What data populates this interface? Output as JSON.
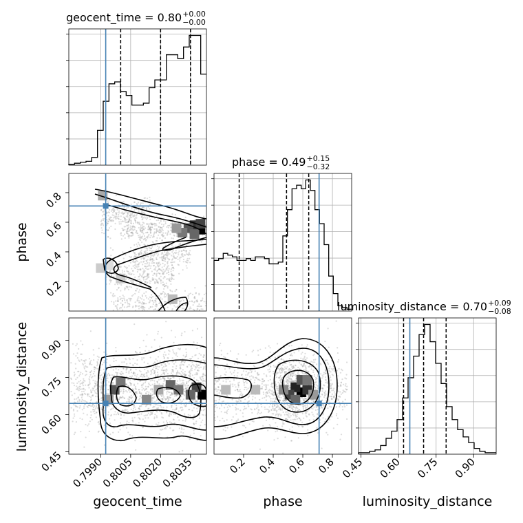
{
  "chart_data": {
    "type": "corner",
    "parameters": [
      "geocent_time",
      "phase",
      "luminosity_distance"
    ],
    "truth_color": "#4682b4",
    "titles": [
      {
        "name": "geocent_time",
        "median": "0.80",
        "plus": "+0.00",
        "minus": "−0.00"
      },
      {
        "name": "phase",
        "median": "0.49",
        "plus": "+0.15",
        "minus": "−0.32"
      },
      {
        "name": "luminosity_distance",
        "median": "0.70",
        "plus": "+0.09",
        "minus": "−0.08"
      }
    ],
    "axis_labels": {
      "x": [
        "geocent_time",
        "phase",
        "luminosity_distance"
      ],
      "y": [
        "phase",
        "luminosity_distance"
      ]
    },
    "truths": {
      "geocent_time": 0.79925,
      "phase": 0.71,
      "luminosity_distance": 0.645
    },
    "ranges": {
      "geocent_time": [
        0.7974,
        0.8043
      ],
      "phase": [
        0.0,
        0.93
      ],
      "luminosity_distance": [
        0.44,
        0.99
      ]
    },
    "ticks": {
      "geocent_time": {
        "values": [
          0.799,
          0.8005,
          0.802,
          0.8035
        ],
        "labels": [
          "0.7990",
          "0.8005",
          "0.8020",
          "0.8035"
        ]
      },
      "phase": {
        "values": [
          0.2,
          0.4,
          0.6,
          0.8
        ],
        "labels": [
          "0.2",
          "0.4",
          "0.6",
          "0.8"
        ]
      },
      "luminosity_distance": {
        "values": [
          0.45,
          0.6,
          0.75,
          0.9
        ],
        "labels": [
          "0.45",
          "0.60",
          "0.75",
          "0.90"
        ]
      }
    },
    "quantiles": {
      "geocent_time": [
        0.8,
        0.802,
        0.8035
      ],
      "phase": [
        0.17,
        0.49,
        0.64
      ],
      "luminosity_distance": [
        0.62,
        0.7,
        0.79
      ]
    },
    "histograms": {
      "geocent_time": {
        "edges_range": [
          0.7974,
          0.8043
        ],
        "counts": [
          0.5,
          1,
          1.5,
          2,
          4,
          18,
          33,
          42,
          43,
          38,
          36,
          31,
          31,
          32,
          40,
          44,
          44,
          57,
          57,
          55,
          61,
          67,
          67,
          47
        ]
      },
      "phase": {
        "edges_range": [
          0.0,
          0.93
        ],
        "counts": [
          29,
          30,
          33,
          32,
          31,
          29,
          29,
          30,
          29,
          31,
          31,
          30,
          27,
          27,
          28,
          43,
          58,
          70,
          72,
          70,
          75,
          69,
          58,
          50,
          38,
          20,
          10,
          3,
          2,
          1
        ]
      },
      "luminosity_distance": {
        "edges_range": [
          0.44,
          0.99
        ],
        "counts": [
          1,
          1,
          2,
          3,
          6,
          11,
          16,
          24,
          39,
          53,
          68,
          83,
          90,
          78,
          63,
          49,
          33,
          24,
          17,
          12,
          8,
          4,
          2,
          1,
          1
        ]
      }
    }
  }
}
